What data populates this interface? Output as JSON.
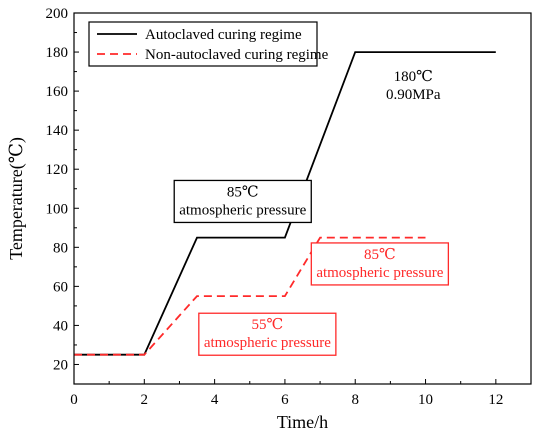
{
  "chart_data": {
    "type": "line",
    "title": "",
    "xlabel": "Time/h",
    "ylabel": "Temperature(℃)",
    "xlim": [
      0,
      13
    ],
    "ylim": [
      10,
      200
    ],
    "xticks": [
      0,
      2,
      4,
      6,
      8,
      10,
      12
    ],
    "yticks": [
      20,
      40,
      60,
      80,
      100,
      120,
      140,
      160,
      180,
      200
    ],
    "grid": false,
    "legend_position": "top-left",
    "series": [
      {
        "name": "Autoclaved curing regime",
        "color": "#000000",
        "style": "solid",
        "x": [
          0,
          2,
          3.5,
          6,
          8,
          12
        ],
        "y": [
          25,
          25,
          85,
          85,
          180,
          180
        ]
      },
      {
        "name": "Non-autoclaved curing regime",
        "color": "#ff2a2a",
        "style": "dashed",
        "x": [
          0,
          2,
          3.5,
          6,
          7,
          10
        ],
        "y": [
          25,
          25,
          55,
          55,
          85,
          85
        ]
      }
    ],
    "annotations": [
      {
        "lines": [
          "180℃",
          "0.90MPa"
        ],
        "x": 9.65,
        "y": 163,
        "color": "#000000",
        "boxed": false
      },
      {
        "lines": [
          "85℃",
          "atmospheric pressure"
        ],
        "x": 4.8,
        "y": 104,
        "color": "#000000",
        "boxed": true
      },
      {
        "lines": [
          "85℃",
          "atmospheric pressure"
        ],
        "x": 8.7,
        "y": 72,
        "color": "#ff2a2a",
        "boxed": true
      },
      {
        "lines": [
          "55℃",
          "atmospheric pressure"
        ],
        "x": 5.5,
        "y": 36,
        "color": "#ff2a2a",
        "boxed": true
      }
    ]
  }
}
